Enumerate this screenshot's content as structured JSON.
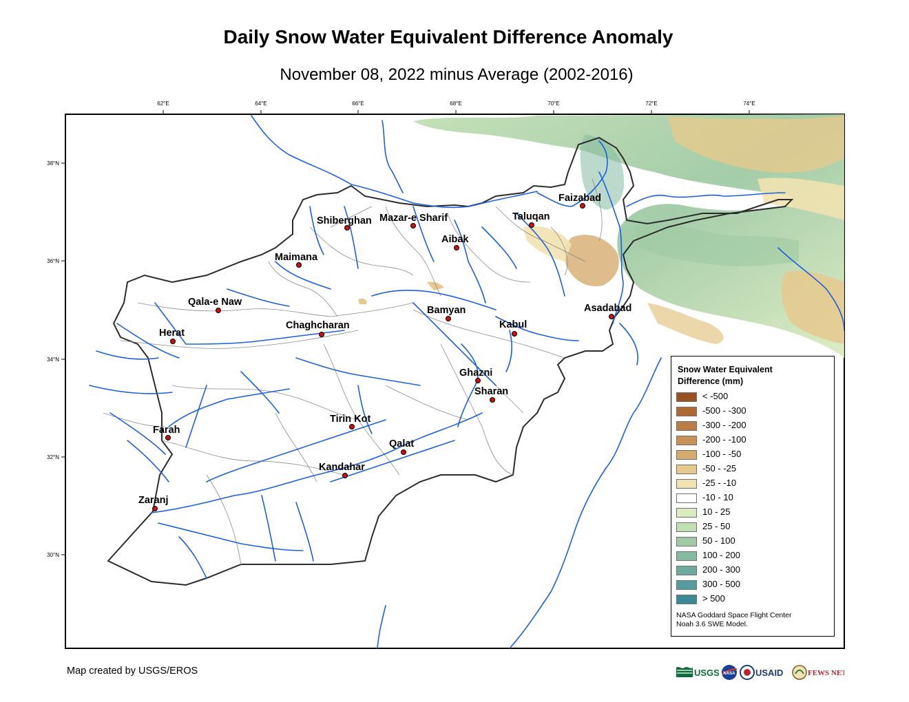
{
  "title": "Daily Snow Water Equivalent Difference Anomaly",
  "subtitle": "November 08, 2022 minus Average (2002-2016)",
  "longitude_ticks": [
    "62°E",
    "64°E",
    "66°E",
    "68°E",
    "70°E",
    "72°E",
    "74°E"
  ],
  "latitude_ticks": [
    "38°N",
    "36°N",
    "34°N",
    "32°N",
    "30°N"
  ],
  "cities": [
    {
      "name": "Faizabad"
    },
    {
      "name": "Shiberghan"
    },
    {
      "name": "Mazar-e Sharif"
    },
    {
      "name": "Taluqan"
    },
    {
      "name": "Aibak"
    },
    {
      "name": "Maimana"
    },
    {
      "name": "Qala-e Naw"
    },
    {
      "name": "Bamyan"
    },
    {
      "name": "Asadabad"
    },
    {
      "name": "Herat"
    },
    {
      "name": "Chaghcharan"
    },
    {
      "name": "Kabul"
    },
    {
      "name": "Ghazni"
    },
    {
      "name": "Sharan"
    },
    {
      "name": "Tirin Kot"
    },
    {
      "name": "Farah"
    },
    {
      "name": "Qalat"
    },
    {
      "name": "Kandahar"
    },
    {
      "name": "Zaranj"
    }
  ],
  "legend": {
    "title": "Snow Water Equivalent Difference (mm)",
    "items": [
      {
        "label": "< -500",
        "color": "#9a5223"
      },
      {
        "label": "-500 - -300",
        "color": "#ad6a35"
      },
      {
        "label": "-300 - -200",
        "color": "#bb7d46"
      },
      {
        "label": "-200 - -100",
        "color": "#c79159"
      },
      {
        "label": "-100 - -50",
        "color": "#d6ab6e"
      },
      {
        "label": "-50 - -25",
        "color": "#e6c98d"
      },
      {
        "label": "-25 - -10",
        "color": "#f1e2b0"
      },
      {
        "label": "-10 - 10",
        "color": "#ffffff"
      },
      {
        "label": "10 - 25",
        "color": "#dcebc0"
      },
      {
        "label": "25 - 50",
        "color": "#c2dfb4"
      },
      {
        "label": "50 - 100",
        "color": "#9fcaa4"
      },
      {
        "label": "100 - 200",
        "color": "#85bba0"
      },
      {
        "label": "200 - 300",
        "color": "#6eab9f"
      },
      {
        "label": "300 - 500",
        "color": "#569c9c"
      },
      {
        "label": "> 500",
        "color": "#3d8a97"
      }
    ],
    "source_line1": "NASA Goddard Space Flight Center",
    "source_line2": "Noah 3.6 SWE Model."
  },
  "credit": "Map created by USGS/EROS",
  "logos": {
    "usgs": "USGS",
    "nasa": "NASA",
    "usaid": "USAID",
    "fewsnet": "FEWS NET"
  },
  "colors": {
    "river": "#1a5fe0",
    "border": "#2b2b2b",
    "city_dot": "#cc1111"
  }
}
